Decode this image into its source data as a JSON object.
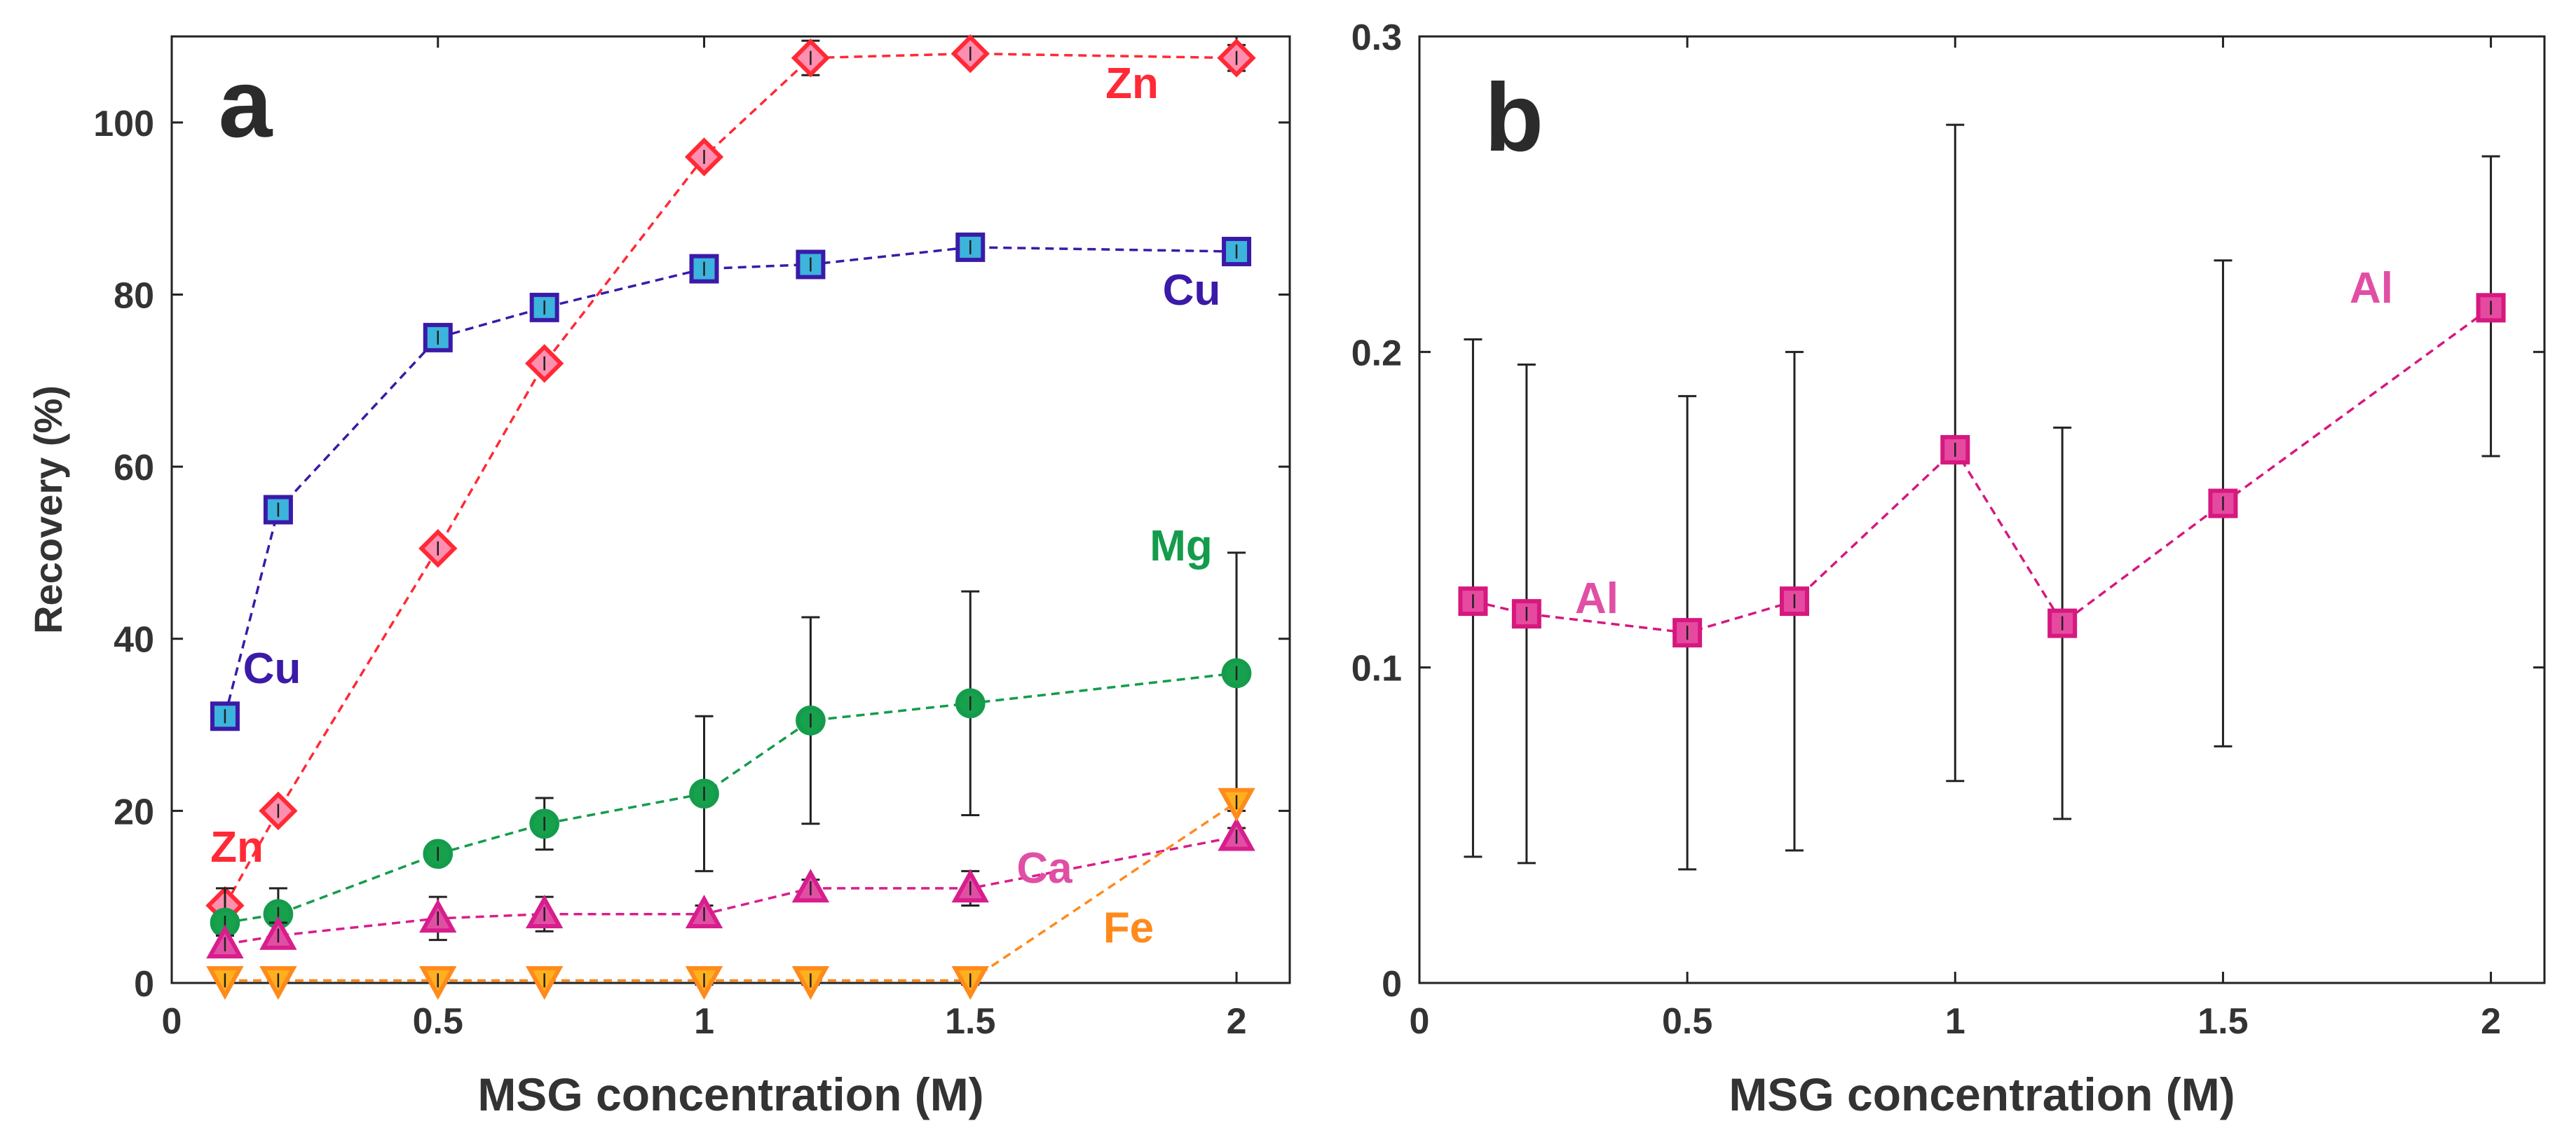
{
  "chart_data": [
    {
      "panel": "a",
      "type": "line",
      "style": "dashed lines with markers and error bars",
      "xlabel": "MSG concentration (M)",
      "ylabel": "Recovery (%)",
      "xlim": [
        0,
        2.1
      ],
      "ylim": [
        0,
        110
      ],
      "xticks": [
        0,
        0.5,
        1,
        1.5,
        2
      ],
      "xtick_labels": [
        "0",
        "0.5",
        "1",
        "1.5",
        "2"
      ],
      "yticks": [
        0,
        20,
        40,
        60,
        80,
        100
      ],
      "ytick_labels": [
        "0",
        "20",
        "40",
        "60",
        "80",
        "100"
      ],
      "grid": false,
      "series": [
        {
          "name": "Zn",
          "color": "#ff2a36",
          "marker": "diamond",
          "fill": "#ff8fb0",
          "x": [
            0.1,
            0.2,
            0.5,
            0.7,
            1,
            1.2,
            1.5,
            2
          ],
          "y": [
            9,
            20,
            50.5,
            72,
            96,
            107.5,
            108,
            107.5
          ],
          "err": [
            0.5,
            0.5,
            0.5,
            0.5,
            0.5,
            2,
            1,
            1.5
          ]
        },
        {
          "name": "Cu",
          "color": "#3b1aa8",
          "marker": "square",
          "fill": "#3cb4dc",
          "x": [
            0.1,
            0.2,
            0.5,
            0.7,
            1,
            1.2,
            1.5,
            2
          ],
          "y": [
            31,
            55,
            75,
            78.5,
            83,
            83.5,
            85.5,
            85
          ],
          "err": [
            0.5,
            0.5,
            0.5,
            0.5,
            0.5,
            0.5,
            0.5,
            0.5
          ]
        },
        {
          "name": "Mg",
          "color": "#149c4c",
          "marker": "circle",
          "fill": "#17a14d",
          "x": [
            0.1,
            0.2,
            0.5,
            0.7,
            1,
            1.2,
            1.5,
            2
          ],
          "y": [
            7,
            8,
            15,
            18.5,
            22,
            30.5,
            32.5,
            36
          ],
          "err": [
            4,
            3,
            1,
            3,
            9,
            12,
            13,
            14
          ]
        },
        {
          "name": "Ca",
          "color": "#d81e8c",
          "marker": "triangle-up",
          "fill": "#e14fa5",
          "x": [
            0.1,
            0.2,
            0.5,
            0.7,
            1,
            1.2,
            1.5,
            2
          ],
          "y": [
            4.5,
            5.5,
            7.5,
            8,
            8,
            11,
            11,
            17
          ],
          "err": [
            1,
            1.5,
            2.5,
            2,
            1,
            1,
            2,
            1
          ]
        },
        {
          "name": "Fe",
          "color": "#ff8a1c",
          "marker": "triangle-down",
          "fill": "#ffb01e",
          "x": [
            0.1,
            0.2,
            0.5,
            0.7,
            1,
            1.2,
            1.5,
            2
          ],
          "y": [
            0.3,
            0.3,
            0.3,
            0.3,
            0.3,
            0.3,
            0.3,
            21
          ],
          "err": [
            0,
            0,
            0,
            0,
            0.5,
            0.5,
            0.5,
            1
          ]
        }
      ],
      "annotations": [
        {
          "text": "Zn",
          "series": "Zn",
          "at": "above right of 1.5 M point"
        },
        {
          "text": "Zn",
          "series": "Zn",
          "at": "left of 0.1 M point"
        },
        {
          "text": "Cu",
          "series": "Cu",
          "at": "below 2 M point"
        },
        {
          "text": "Cu",
          "series": "Cu",
          "at": "right of 0.1 M point"
        },
        {
          "text": "Mg",
          "series": "Mg",
          "at": "above 2 M error bar"
        },
        {
          "text": "Ca",
          "series": "Ca",
          "at": "between 1.5 M and 2 M"
        },
        {
          "text": "Fe",
          "series": "Fe",
          "at": "between 1.5 M and 2 M, lower"
        }
      ],
      "panel_label": "a"
    },
    {
      "panel": "b",
      "type": "line",
      "style": "dashed line with markers and error bars",
      "xlabel": "MSG concentration (M)",
      "ylabel": "",
      "xlim": [
        0,
        2.1
      ],
      "ylim": [
        0,
        0.3
      ],
      "xticks": [
        0,
        0.5,
        1,
        1.5,
        2
      ],
      "xtick_labels": [
        "0",
        "0.5",
        "1",
        "1.5",
        "2"
      ],
      "yticks": [
        0,
        0.1,
        0.2,
        0.3
      ],
      "ytick_labels": [
        "0",
        "0.1",
        "0.2",
        "0.3"
      ],
      "grid": false,
      "series": [
        {
          "name": "Al",
          "color": "#d6187f",
          "marker": "square",
          "fill": "#e64aa0",
          "x": [
            0.1,
            0.2,
            0.5,
            0.7,
            1,
            1.2,
            1.5,
            2
          ],
          "y": [
            0.121,
            0.117,
            0.111,
            0.121,
            0.169,
            0.114,
            0.152,
            0.214
          ],
          "err_low": [
            0.081,
            0.079,
            0.075,
            0.079,
            0.105,
            0.062,
            0.077,
            0.047
          ],
          "err_high": [
            0.083,
            0.079,
            0.075,
            0.079,
            0.103,
            0.062,
            0.077,
            0.048
          ]
        }
      ],
      "annotations": [
        {
          "text": "Al",
          "series": "Al",
          "at": "right of 0.2 M point"
        },
        {
          "text": "Al",
          "series": "Al",
          "at": "left of 2 M point"
        }
      ],
      "panel_label": "b"
    }
  ]
}
